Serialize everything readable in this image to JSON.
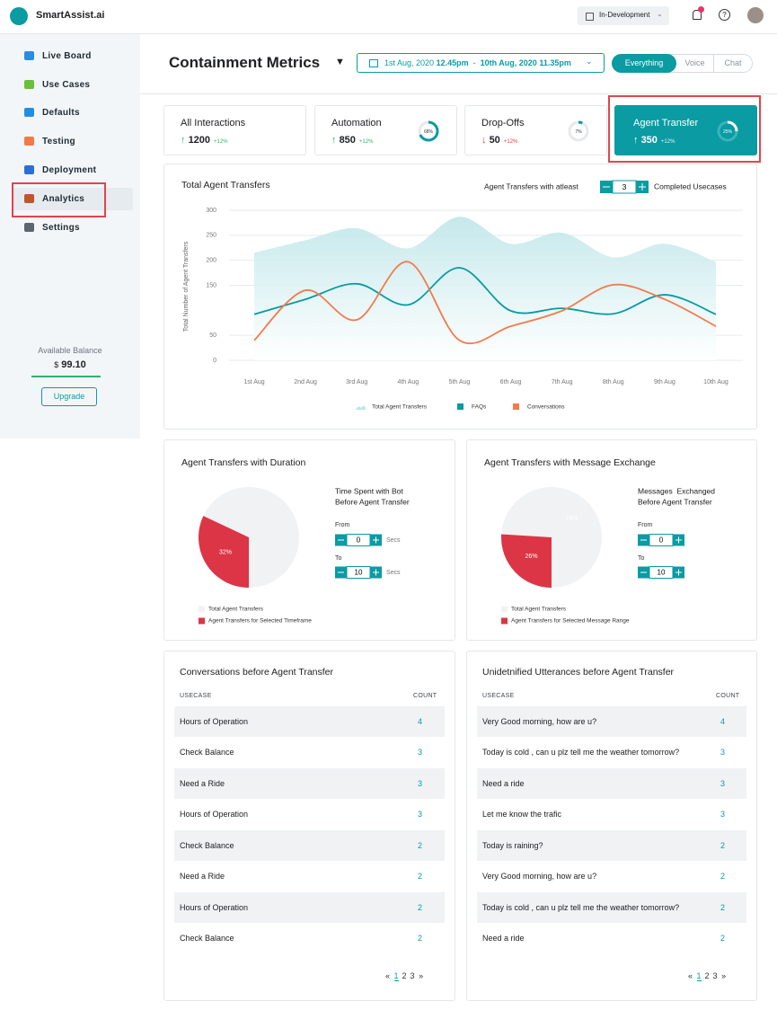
{
  "app": {
    "brand": "SmartAssist.ai",
    "environment": "In-Development"
  },
  "nav": [
    "Live Board",
    "Use Cases",
    "Defaults",
    "Testing",
    "Deployment",
    "Analytics",
    "Settings"
  ],
  "balance": {
    "label": "Available Balance",
    "currency": "$",
    "amount": "99.10",
    "button": "Upgrade"
  },
  "header": {
    "title": "Containment Metrics",
    "date_from": "1st Aug, 2020",
    "time_from": "12.45pm",
    "separator": "-",
    "date_to": "10th Aug, 2020",
    "time_to": "11.35pm",
    "tabs": [
      "Everything",
      "Voice",
      "Chat"
    ]
  },
  "kpis": [
    {
      "label": "All Interactions",
      "value": 1200,
      "change": "+12%"
    },
    {
      "label": "Automation",
      "value": 850,
      "change": "+12%",
      "ring": {
        "value": 68,
        "label": "68%"
      }
    },
    {
      "label": "Drop-Offs",
      "value": 50,
      "change": "+12%",
      "ring": {
        "value": 7,
        "label": "7%"
      }
    },
    {
      "label": "Agent Transfer",
      "value": 350,
      "change": "+12%",
      "ring": {
        "value": 25,
        "label": "25%"
      }
    }
  ],
  "chart_data": [
    {
      "type": "line",
      "title": "Total Agent Transfers",
      "y_label": "Total Number of Agent Transfers",
      "filter": {
        "prefix": "Agent Transfers with atleast",
        "count": 3,
        "suffix": "Completed Usecases"
      },
      "categories": [
        "1st Aug",
        "2nd Aug",
        "3rd Aug",
        "4th Aug",
        "5th Aug",
        "6th Aug",
        "7th Aug",
        "8th Aug",
        "9th Aug",
        "10th Aug"
      ],
      "ylim": [
        0,
        300
      ],
      "yticks": [
        0,
        50,
        150,
        200,
        250,
        300
      ],
      "grid": true,
      "series": [
        {
          "name": "Total Agent Transfers",
          "style": "area",
          "color": "#bfe6e9",
          "values": [
            215,
            240,
            264,
            224,
            287,
            233,
            255,
            206,
            233,
            197
          ]
        },
        {
          "name": "FAQs",
          "style": "line",
          "color": "#0a9ba3",
          "values": [
            92,
            122,
            153,
            111,
            185,
            99,
            104,
            93,
            131,
            92
          ]
        },
        {
          "name": "Conversations",
          "style": "line",
          "color": "#f47b4c",
          "values": [
            40,
            140,
            81,
            197,
            40,
            68,
            99,
            151,
            122,
            68
          ]
        }
      ]
    },
    {
      "type": "pie",
      "title": "Agent Transfers with Duration",
      "filter": {
        "heading": [
          "Time Spent with Bot",
          "Before Agent Transfer"
        ],
        "from_label": "From",
        "from": 0,
        "to_label": "To",
        "to": 10,
        "unit": "Secs"
      },
      "categories": [
        "Total Agent Transfers",
        "Agent Transfers for Selected Timeframe"
      ],
      "values": [
        68,
        32
      ],
      "value_labels": [
        null,
        "32%"
      ],
      "colors": [
        "#f1f2f4",
        "#dc3545"
      ]
    },
    {
      "type": "pie",
      "title": "Agent Transfers with Message Exchange",
      "filter": {
        "heading": [
          "Messages  Exchanged",
          "Before Agent Transfer"
        ],
        "from_label": "From",
        "from": 0,
        "to_label": "To",
        "to": 10
      },
      "categories": [
        "Total Agent Transfers",
        "Agent Transfers for Selected Message Range"
      ],
      "values": [
        74,
        26
      ],
      "value_labels": [
        "74%",
        "26%"
      ],
      "colors": [
        "#f1f2f4",
        "#dc3545"
      ]
    }
  ],
  "tables": [
    {
      "title": "Conversations before Agent Transfer",
      "columns": [
        "USECASE",
        "COUNT"
      ],
      "rows": [
        [
          "Hours of Operation",
          4
        ],
        [
          "Check Balance",
          3
        ],
        [
          "Need a Ride",
          3
        ],
        [
          "Hours of Operation",
          3
        ],
        [
          "Check Balance",
          2
        ],
        [
          "Need a Ride",
          2
        ],
        [
          "Hours of Operation",
          2
        ],
        [
          "Check Balance",
          2
        ]
      ],
      "pages": [
        1,
        2,
        3
      ]
    },
    {
      "title": "Unidetnified Utterances before Agent Transfer",
      "columns": [
        "USECASE",
        "COUNT"
      ],
      "rows": [
        [
          "Very Good morning, how are u?",
          4
        ],
        [
          "Today is cold , can u plz tell me the weather tomorrow?",
          3
        ],
        [
          "Need a ride",
          3
        ],
        [
          "Let me know the trafic",
          3
        ],
        [
          "Today is raining?",
          2
        ],
        [
          "Very Good morning, how are u?",
          2
        ],
        [
          "Today is cold , can u plz tell me the weather tomorrow?",
          2
        ],
        [
          "Need a ride",
          2
        ]
      ],
      "pages": [
        1,
        2,
        3
      ]
    }
  ]
}
